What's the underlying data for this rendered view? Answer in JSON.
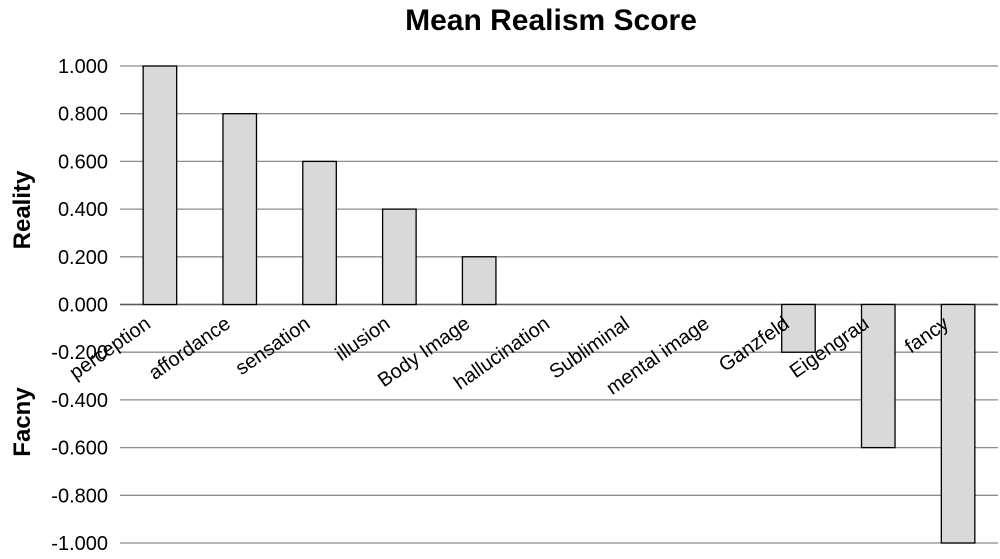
{
  "chart_data": {
    "type": "bar",
    "title": "Mean Realism Score",
    "ylabel_top": "Reality",
    "ylabel_bottom": "Facny",
    "ylim": [
      -1.0,
      1.0
    ],
    "yticks": [
      "1.000",
      "0.800",
      "0.600",
      "0.400",
      "0.200",
      "0.000",
      "-0.200",
      "-0.400",
      "-0.600",
      "-0.800",
      "-1.000"
    ],
    "categories": [
      "perception",
      "affordance",
      "sensation",
      "illusion",
      "Body Image",
      "hallucination",
      "Subliminal",
      "mental image",
      "Ganzfeld",
      "Eigengrau",
      "fancy"
    ],
    "values": [
      1.0,
      0.8,
      0.6,
      0.4,
      0.2,
      0.0,
      0.0,
      0.0,
      -0.2,
      -0.6,
      -1.0
    ],
    "grid": true,
    "bar_color": "#d9d9d9"
  }
}
